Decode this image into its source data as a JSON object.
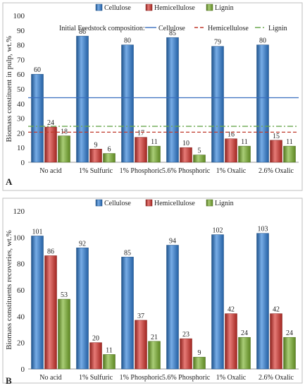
{
  "chart_data": [
    {
      "type": "bar",
      "panel_label": "A",
      "ylabel": "Biomass constituent in pulp, wt.%",
      "categories": [
        "No acid",
        "1% Sulfuric",
        "1% Phosphoric",
        "5.6% Phosphoric",
        "1% Oxalic",
        "2.6% Oxalic"
      ],
      "series": [
        {
          "name": "Cellulose",
          "color": "#2e7fd8",
          "values": [
            60,
            86,
            80,
            85,
            79,
            80
          ]
        },
        {
          "name": "Hemicellulose",
          "color": "#d8322c",
          "values": [
            24,
            9,
            17,
            10,
            16,
            15
          ]
        },
        {
          "name": "Lignin",
          "color": "#7bb22c",
          "values": [
            18,
            6,
            11,
            5,
            11,
            11
          ]
        }
      ],
      "ylim": [
        0,
        100
      ],
      "yticks": [
        0,
        10,
        20,
        30,
        40,
        50,
        60,
        70,
        80,
        90,
        100
      ],
      "grid": false,
      "legend": "top-center",
      "reference_lines": {
        "label": "Initial Feedstock composition:",
        "lines": [
          {
            "name": "Cellulose",
            "value": 44,
            "style": "solid",
            "color": "#3a6fbf"
          },
          {
            "name": "Hemicellulose",
            "value": 20.5,
            "style": "dashed",
            "color": "#c0392b"
          },
          {
            "name": "Lignin",
            "value": 24.5,
            "style": "dashdot",
            "color": "#6aa84f"
          }
        ]
      }
    },
    {
      "type": "bar",
      "panel_label": "B",
      "ylabel": "Biomass constituents recoveries, wt.%",
      "categories": [
        "No acid",
        "1% Sulfuric",
        "1% Phosphoric",
        "5.6% Phosphoric",
        "1% Oxalic",
        "2.6% Oxalic"
      ],
      "series": [
        {
          "name": "Cellulose",
          "color": "#2e7fd8",
          "values": [
            101,
            92,
            85,
            94,
            102,
            103
          ]
        },
        {
          "name": "Hemicellulose",
          "color": "#d8322c",
          "values": [
            86,
            20,
            37,
            23,
            42,
            42
          ]
        },
        {
          "name": "Lignin",
          "color": "#7bb22c",
          "values": [
            53,
            11,
            21,
            9,
            24,
            24
          ]
        }
      ],
      "ylim": [
        0,
        120
      ],
      "yticks": [
        0,
        20,
        40,
        60,
        80,
        100,
        120
      ],
      "grid": false,
      "legend": "top-center"
    }
  ]
}
